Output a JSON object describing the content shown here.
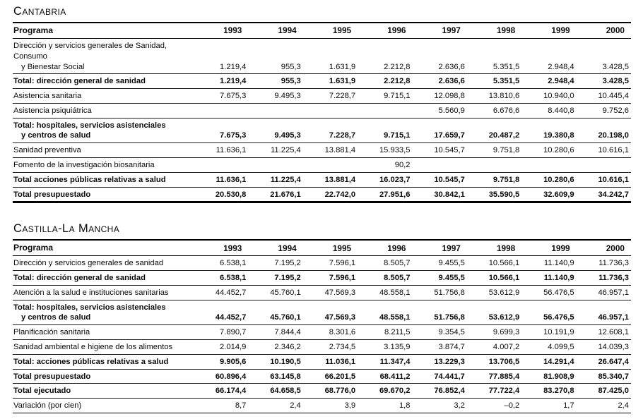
{
  "sections": [
    {
      "title": "Cantabria",
      "programa_header": "Programa",
      "years": [
        "1993",
        "1994",
        "1995",
        "1996",
        "1997",
        "1998",
        "1999",
        "2000"
      ],
      "rows": [
        {
          "lines": [
            "Dirección y servicios generales de Sanidad, Consumo",
            "y Bienestar Social"
          ],
          "bold": false,
          "values": [
            "1.219,4",
            "955,3",
            "1.631,9",
            "2.212,8",
            "2.636,6",
            "5.351,5",
            "2.948,4",
            "3.428,5"
          ]
        },
        {
          "lines": [
            "Total: dirección general de sanidad"
          ],
          "bold": true,
          "values": [
            "1.219,4",
            "955,3",
            "1.631,9",
            "2.212,8",
            "2.636,6",
            "5.351,5",
            "2.948,4",
            "3.428,5"
          ]
        },
        {
          "lines": [
            "Asistencia sanitaria"
          ],
          "bold": false,
          "values": [
            "7.675,3",
            "9.495,3",
            "7.228,7",
            "9.715,1",
            "12.098,8",
            "13.810,6",
            "10.940,0",
            "10.445,4"
          ]
        },
        {
          "lines": [
            "Asistencia psiquiátrica"
          ],
          "bold": false,
          "values": [
            "",
            "",
            "",
            "",
            "5.560,9",
            "6.676,6",
            "8.440,8",
            "9.752,6"
          ]
        },
        {
          "lines": [
            "Total: hospitales, servicios asistenciales",
            "y centros de salud"
          ],
          "bold": true,
          "values": [
            "7.675,3",
            "9.495,3",
            "7.228,7",
            "9.715,1",
            "17.659,7",
            "20.487,2",
            "19.380,8",
            "20.198,0"
          ]
        },
        {
          "lines": [
            "Sanidad preventiva"
          ],
          "bold": false,
          "values": [
            "11.636,1",
            "11.225,4",
            "13.881,4",
            "15.933,5",
            "10.545,7",
            "9.751,8",
            "10.280,6",
            "10.616,1"
          ]
        },
        {
          "lines": [
            "Fomento de la investigación biosanitaria"
          ],
          "bold": false,
          "values": [
            "",
            "",
            "",
            "90,2",
            "",
            "",
            "",
            ""
          ]
        },
        {
          "lines": [
            "Total acciones públicas relativas a salud"
          ],
          "bold": true,
          "values": [
            "11.636,1",
            "11.225,4",
            "13.881,4",
            "16.023,7",
            "10.545,7",
            "9.751,8",
            "10.280,6",
            "10.616,1"
          ]
        },
        {
          "lines": [
            "Total presupuestado"
          ],
          "bold": true,
          "values": [
            "20.530,8",
            "21.676,1",
            "22.742,0",
            "27.951,6",
            "30.842,1",
            "35.590,5",
            "32.609,9",
            "34.242,7"
          ]
        }
      ]
    },
    {
      "title": "Castilla-La Mancha",
      "programa_header": "Programa",
      "years": [
        "1993",
        "1994",
        "1995",
        "1996",
        "1997",
        "1998",
        "1999",
        "2000"
      ],
      "rows": [
        {
          "lines": [
            "Dirección y servicios generales de sanidad"
          ],
          "bold": false,
          "values": [
            "6.538,1",
            "7.195,2",
            "7.596,1",
            "8.505,7",
            "9.455,5",
            "10.566,1",
            "11.140,9",
            "11.736,3"
          ]
        },
        {
          "lines": [
            "Total: dirección general de sanidad"
          ],
          "bold": true,
          "values": [
            "6.538,1",
            "7.195,2",
            "7.596,1",
            "8.505,7",
            "9.455,5",
            "10.566,1",
            "11.140,9",
            "11.736,3"
          ]
        },
        {
          "lines": [
            "Atención a la salud e instituciones sanitarias"
          ],
          "bold": false,
          "values": [
            "44.452,7",
            "45.760,1",
            "47.569,3",
            "48.558,1",
            "51.756,8",
            "53.612,9",
            "56.476,5",
            "46.957,1"
          ]
        },
        {
          "lines": [
            "Total: hospitales, servicios asistenciales",
            "y centros de salud"
          ],
          "bold": true,
          "values": [
            "44.452,7",
            "45.760,1",
            "47.569,3",
            "48.558,1",
            "51.756,8",
            "53.612,9",
            "56.476,5",
            "46.957,1"
          ]
        },
        {
          "lines": [
            "Planificación sanitaria"
          ],
          "bold": false,
          "values": [
            "7.890,7",
            "7.844,4",
            "8.301,6",
            "8.211,5",
            "9.354,5",
            "9.699,3",
            "10.191,9",
            "12.608,1"
          ]
        },
        {
          "lines": [
            "Sanidad ambiental e higiene de los alimentos"
          ],
          "bold": false,
          "values": [
            "2.014,9",
            "2.346,2",
            "2.734,5",
            "3.135,9",
            "3.874,7",
            "4.007,2",
            "4.099,5",
            "14.039,3"
          ]
        },
        {
          "lines": [
            "Total: acciones públicas relativas a salud"
          ],
          "bold": true,
          "values": [
            "9.905,6",
            "10.190,5",
            "11.036,1",
            "11.347,4",
            "13.229,3",
            "13.706,5",
            "14.291,4",
            "26.647,4"
          ]
        },
        {
          "lines": [
            "Total presupuestado"
          ],
          "bold": true,
          "values": [
            "60.896,4",
            "63.145,8",
            "66.201,5",
            "68.411,2",
            "74.441,7",
            "77.885,4",
            "81.908,9",
            "85.340,7"
          ]
        },
        {
          "lines": [
            "Total ejecutado"
          ],
          "bold": true,
          "values": [
            "66.174,4",
            "64.658,5",
            "68.776,0",
            "69.670,2",
            "76.852,4",
            "77.722,4",
            "83.270,8",
            "87.425,0"
          ]
        },
        {
          "lines": [
            "Variación (por cien)"
          ],
          "bold": false,
          "values": [
            "8,7",
            "2,4",
            "3,9",
            "1,8",
            "3,2",
            "–0,2",
            "1,7",
            "2,4"
          ]
        }
      ]
    }
  ]
}
